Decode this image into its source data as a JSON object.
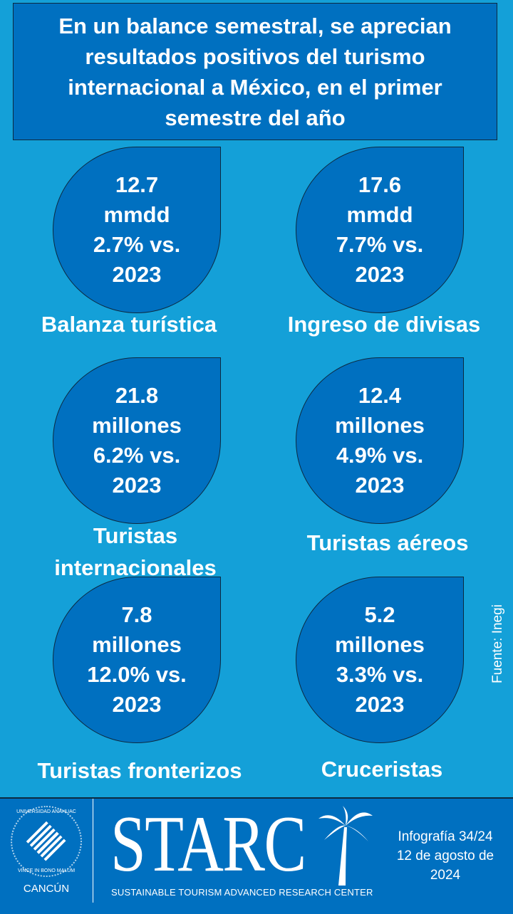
{
  "title": "En un balance semestral, se aprecian resultados positivos del turismo internacional a México, en el primer semestre del año",
  "colors": {
    "background": "#14a0d8",
    "panel": "#0070c0",
    "text": "#ffffff"
  },
  "stats": [
    {
      "value": "12.7",
      "unit": "mmdd",
      "change": "2.7% vs.",
      "year": "2023",
      "label": "Balanza turística"
    },
    {
      "value": "17.6",
      "unit": "mmdd",
      "change": "7.7% vs.",
      "year": "2023",
      "label": "Ingreso de divisas"
    },
    {
      "value": "21.8",
      "unit": "millones",
      "change": "6.2% vs.",
      "year": "2023",
      "label": "Turistas internacionales"
    },
    {
      "value": "12.4",
      "unit": "millones",
      "change": "4.9% vs.",
      "year": "2023",
      "label": "Turistas aéreos"
    },
    {
      "value": "7.8",
      "unit": "millones",
      "change": "12.0% vs.",
      "year": "2023",
      "label": "Turistas fronterizos"
    },
    {
      "value": "5.2",
      "unit": "millones",
      "change": "3.3% vs.",
      "year": "2023",
      "label": "Cruceristas"
    }
  ],
  "source": "Fuente: Inegi",
  "footer": {
    "university": {
      "name": "UNIVERSIDAD ANÁHUAC",
      "motto": "VINCE IN BONO MALUM",
      "city": "CANCÚN"
    },
    "logo": "STARC",
    "logo_subtitle": "SUSTAINABLE TOURISM ADVANCED RESEARCH CENTER",
    "infographic": "Infografía 34/24",
    "date": "12 de agosto de 2024"
  }
}
